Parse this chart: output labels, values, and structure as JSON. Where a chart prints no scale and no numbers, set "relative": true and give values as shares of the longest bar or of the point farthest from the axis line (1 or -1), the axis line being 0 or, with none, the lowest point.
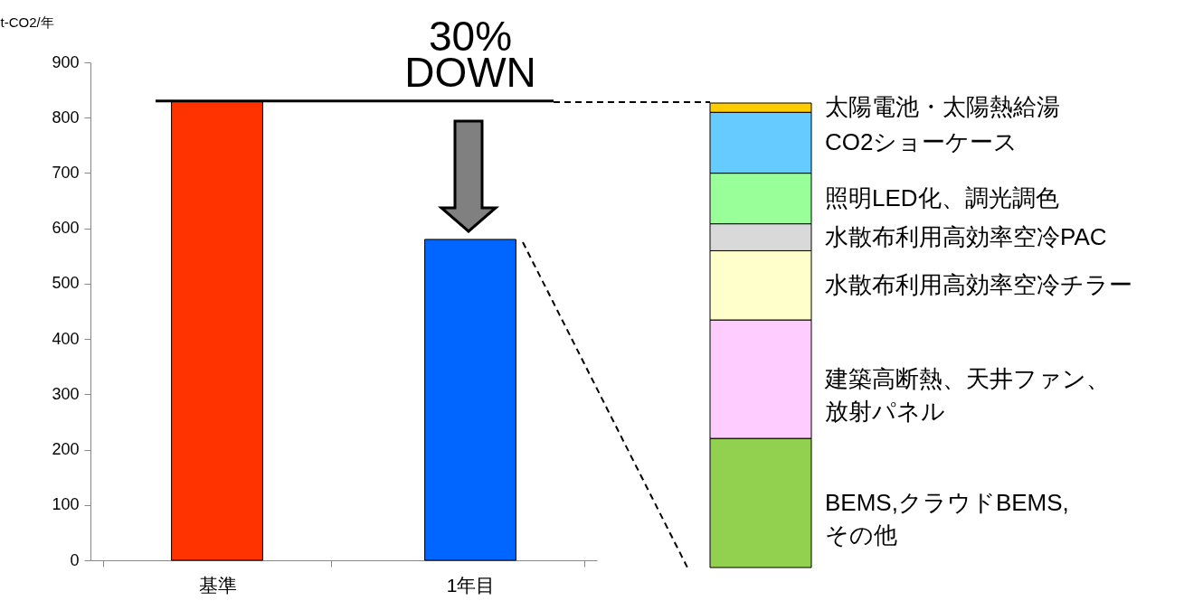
{
  "chart_data": [
    {
      "type": "bar",
      "categories": [
        "基準",
        "1年目"
      ],
      "values": [
        830,
        580
      ],
      "colors": [
        "#ff3300",
        "#0066ff"
      ],
      "ylabel": "t-CO2/年",
      "ylim": [
        0,
        900
      ],
      "yticks": [
        0,
        100,
        200,
        300,
        400,
        500,
        600,
        700,
        800,
        900
      ],
      "grid": false,
      "ref_lines": [
        {
          "axis": "y",
          "value": 830,
          "label": "30%\nDOWN",
          "color": "#000000"
        }
      ]
    },
    {
      "type": "bar",
      "stacked": true,
      "relative": true,
      "categories": [
        null
      ],
      "series": [
        {
          "name": "BEMS,クラウドBEMS,その他",
          "color": "#92d050",
          "values": [
            0.278
          ]
        },
        {
          "name": "建築高断熱、天井ファン、放射パネル",
          "color": "#ffccff",
          "values": [
            0.255
          ]
        },
        {
          "name": "水散布利用高効率空冷チラー",
          "color": "#ffffcc",
          "values": [
            0.149
          ]
        },
        {
          "name": "水散布利用高効率空冷PAC",
          "color": "#d9d9d9",
          "values": [
            0.058
          ]
        },
        {
          "name": "照明LED化、調光調色",
          "color": "#99ff99",
          "values": [
            0.109
          ]
        },
        {
          "name": "CO2ショーケース",
          "color": "#66ccff",
          "values": [
            0.131
          ]
        },
        {
          "name": "太陽電池・太陽熱給湯",
          "color": "#ffcc00",
          "values": [
            0.02
          ]
        }
      ]
    }
  ]
}
